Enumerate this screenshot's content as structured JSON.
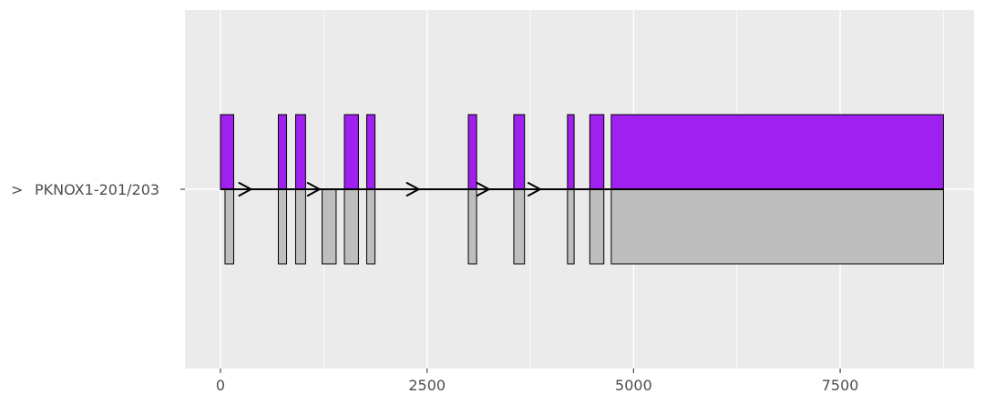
{
  "chart_data": {
    "type": "transcript-structure",
    "title": "",
    "xlabel": "",
    "ylabel": "",
    "xlim": [
      -430,
      9120
    ],
    "x_ticks": [
      0,
      2500,
      5000,
      7500
    ],
    "x_tick_labels": [
      "0",
      "2500",
      "5000",
      "7500"
    ],
    "grid": true,
    "legend": "none",
    "track": {
      "label": "PKNOX1-201/203",
      "strand_glyph": ">",
      "line_range": [
        0,
        8750
      ],
      "arrows": [
        370,
        1200,
        2400,
        3250,
        3870
      ]
    },
    "colors": {
      "panel": "#ebebeb",
      "grid": "#ffffff",
      "line": "#000000",
      "isoform_a": "#a020f0",
      "isoform_b": "#bebebe"
    },
    "series": [
      {
        "name": "",
        "color": "#a020f0",
        "exons": [
          [
            0,
            160
          ],
          [
            700,
            800
          ],
          [
            910,
            1030
          ],
          [
            1500,
            1670
          ],
          [
            1770,
            1870
          ],
          [
            3000,
            3100
          ],
          [
            3550,
            3680
          ],
          [
            4200,
            4280
          ],
          [
            4470,
            4640
          ],
          [
            4730,
            8750
          ]
        ]
      },
      {
        "name": "",
        "color": "#bebebe",
        "exons": [
          [
            55,
            160
          ],
          [
            700,
            800
          ],
          [
            910,
            1030
          ],
          [
            1230,
            1400
          ],
          [
            1500,
            1670
          ],
          [
            1770,
            1870
          ],
          [
            3000,
            3100
          ],
          [
            3550,
            3680
          ],
          [
            4200,
            4280
          ],
          [
            4470,
            4640
          ],
          [
            4730,
            8750
          ]
        ]
      }
    ]
  }
}
